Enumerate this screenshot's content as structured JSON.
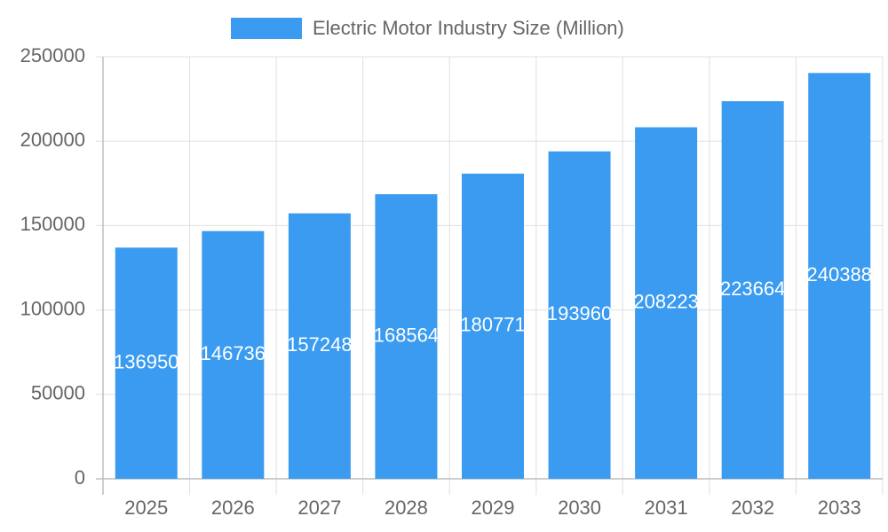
{
  "chart_data": {
    "type": "bar",
    "categories": [
      "2025",
      "2026",
      "2027",
      "2028",
      "2029",
      "2030",
      "2031",
      "2032",
      "2033"
    ],
    "series": [
      {
        "name": "Electric Motor Industry Size (Million)",
        "color": "#3a9bf0",
        "values": [
          136950,
          146736,
          157248,
          168564,
          180771,
          193960,
          208223,
          223664,
          240388
        ]
      }
    ],
    "ylim": [
      0,
      250000
    ],
    "yticks": [
      0,
      50000,
      100000,
      150000,
      200000,
      250000
    ],
    "grid": true,
    "legend": "top",
    "data_labels": true
  }
}
